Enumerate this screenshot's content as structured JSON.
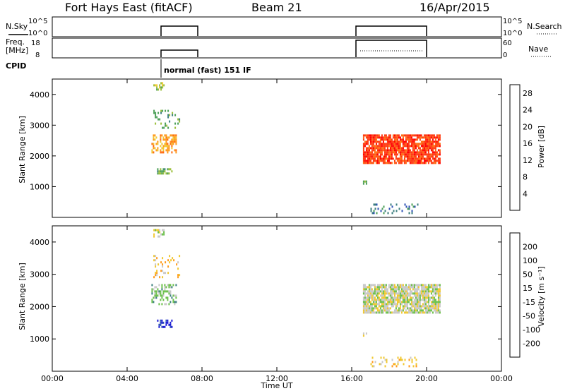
{
  "header": {
    "station": "Fort Hays East (fitACF)",
    "beam": "Beam 21",
    "date": "16/Apr/2015"
  },
  "strip_labels": {
    "nsky": "N.Sky",
    "nsky_ticks": [
      "10^5",
      "10^0"
    ],
    "nsearch": "N.Search",
    "nsearch_ticks": [
      "10^5",
      "10^0"
    ],
    "freq_line1": "Freq.",
    "freq_line2": "[MHz]",
    "freq_ticks": [
      "18",
      "8"
    ],
    "nave": "Nave",
    "nave_ticks": [
      "60",
      "0"
    ],
    "cpid": "CPID",
    "cpid_text": "normal (fast) 151 IF"
  },
  "colors": {
    "axis": "#000000",
    "power_scale": [
      "#1a1ad6",
      "#2f52b5",
      "#3c7f7f",
      "#4ea05a",
      "#9bbf3a",
      "#f0c830",
      "#ff9a1a",
      "#ff6a10",
      "#ff3a10",
      "#ff0000"
    ],
    "velocity_scale": [
      "#1a1ad6",
      "#2f52b5",
      "#3c7f7f",
      "#6cc04a",
      "#c8c8c8",
      "#f0c830",
      "#ff9a1a",
      "#ff5a10",
      "#ff0000"
    ]
  },
  "chart_data": [
    {
      "type": "heatmap",
      "name": "power",
      "xlabel": "Time UT",
      "ylabel": "Slant Range [km]",
      "xlim": [
        0,
        24
      ],
      "ylim": [
        0,
        4500
      ],
      "x_tick_labels": [
        "00:00",
        "04:00",
        "08:00",
        "12:00",
        "16:00",
        "20:00",
        "00:00"
      ],
      "x_tick_values": [
        0,
        4,
        8,
        12,
        16,
        20,
        24
      ],
      "y_tick_values": [
        1000,
        2000,
        3000,
        4000
      ],
      "colorbar_label": "Power [dB]",
      "colorbar_ticks": [
        4,
        8,
        12,
        16,
        20,
        24,
        28
      ],
      "colorbar_range": [
        0,
        30
      ],
      "regions": [
        {
          "t0": 5.4,
          "t1": 6.0,
          "r0": 4150,
          "r1": 4400,
          "level": 4,
          "density": 0.6
        },
        {
          "t0": 5.4,
          "t1": 6.8,
          "r0": 2900,
          "r1": 3500,
          "level": 3,
          "density": 0.25
        },
        {
          "t0": 5.3,
          "t1": 6.6,
          "r0": 2100,
          "r1": 2700,
          "level": 6,
          "density": 0.5
        },
        {
          "t0": 5.6,
          "t1": 6.4,
          "r0": 1400,
          "r1": 1600,
          "level": 3,
          "density": 0.6
        },
        {
          "t0": 16.6,
          "t1": 20.7,
          "r0": 1800,
          "r1": 2700,
          "level": 8,
          "density": 0.85
        },
        {
          "t0": 16.6,
          "t1": 16.8,
          "r0": 1100,
          "r1": 1200,
          "level": 3,
          "density": 0.8
        },
        {
          "t0": 17.0,
          "t1": 19.5,
          "r0": 150,
          "r1": 450,
          "level": 2,
          "density": 0.2
        }
      ]
    },
    {
      "type": "heatmap",
      "name": "velocity",
      "xlabel": "Time UT",
      "ylabel": "Slant Range [km]",
      "xlim": [
        0,
        24
      ],
      "ylim": [
        0,
        4500
      ],
      "x_tick_labels": [
        "00:00",
        "04:00",
        "08:00",
        "12:00",
        "16:00",
        "20:00",
        "00:00"
      ],
      "x_tick_values": [
        0,
        4,
        8,
        12,
        16,
        20,
        24
      ],
      "y_tick_values": [
        1000,
        2000,
        3000,
        4000
      ],
      "colorbar_label": "Velocity [m s⁻¹]",
      "colorbar_ticks": [
        "200",
        "100",
        "50",
        "15",
        "-15",
        "-50",
        "-100",
        "-200"
      ],
      "regions": [
        {
          "t0": 5.4,
          "t1": 6.0,
          "r0": 4150,
          "r1": 4400,
          "level": 4,
          "density": 0.5
        },
        {
          "t0": 5.4,
          "t1": 6.8,
          "r0": 2900,
          "r1": 3600,
          "level": 5,
          "density": 0.2
        },
        {
          "t0": 5.3,
          "t1": 6.6,
          "r0": 2100,
          "r1": 2700,
          "level": 3,
          "density": 0.45
        },
        {
          "t0": 5.6,
          "t1": 6.4,
          "r0": 1400,
          "r1": 1600,
          "level": 0,
          "density": 0.6
        },
        {
          "t0": 16.6,
          "t1": 20.7,
          "r0": 1800,
          "r1": 2700,
          "level": 4,
          "density": 0.85
        },
        {
          "t0": 16.6,
          "t1": 16.8,
          "r0": 1100,
          "r1": 1200,
          "level": 4,
          "density": 0.8
        },
        {
          "t0": 17.0,
          "t1": 19.5,
          "r0": 150,
          "r1": 450,
          "level": 5,
          "density": 0.2
        }
      ]
    }
  ]
}
